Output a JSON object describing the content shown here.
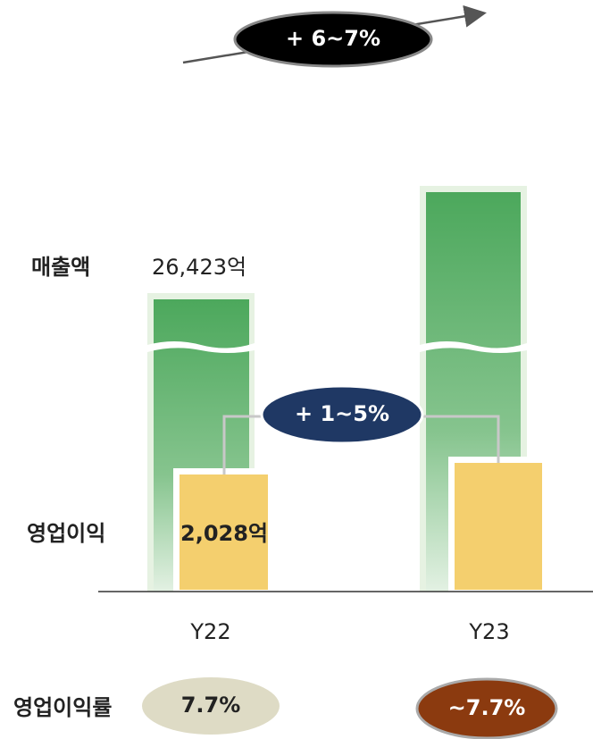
{
  "growth_top": "+ 6~7%",
  "growth_mid": "+ 1~5%",
  "labels": {
    "revenue": "매출액",
    "op_profit": "영업이익",
    "op_margin": "영업이익률"
  },
  "revenue_value": "26,423억",
  "op_profit_value": "2,028억",
  "years": [
    "Y22",
    "Y23"
  ],
  "margins": [
    "7.7%",
    "~7.7%"
  ]
}
